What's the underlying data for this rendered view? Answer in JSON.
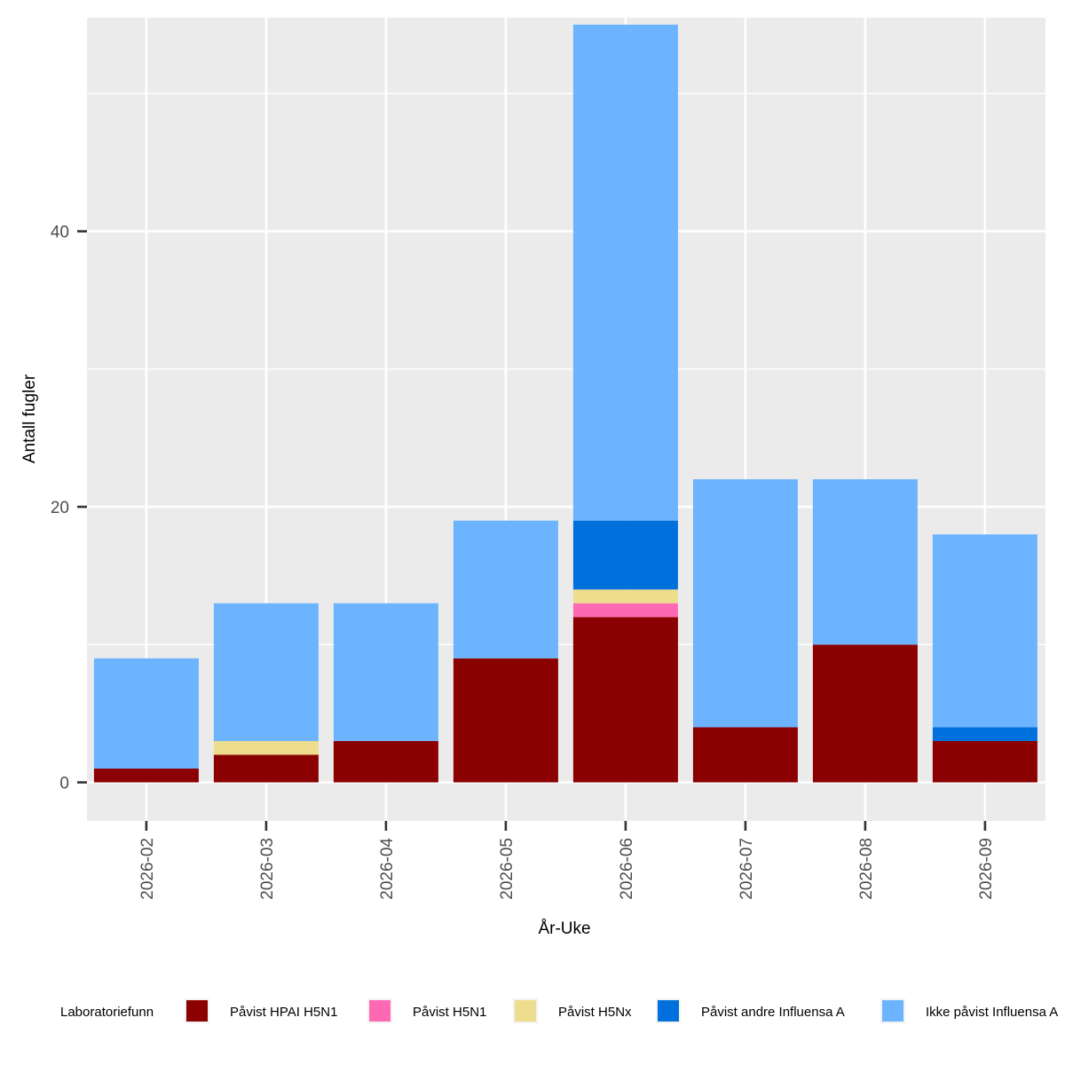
{
  "chart_data": {
    "type": "bar",
    "stacked": true,
    "title": "",
    "xlabel": "År-Uke",
    "ylabel": "Antall fugler",
    "ylim": [
      -2.8,
      55.5
    ],
    "yticks": [
      0,
      20,
      40
    ],
    "grid": true,
    "legend_position": "bottom",
    "legend_title": "Laboratoriefunn",
    "categories": [
      "2026-02",
      "2026-03",
      "2026-04",
      "2026-05",
      "2026-06",
      "2026-07",
      "2026-08",
      "2026-09"
    ],
    "series": [
      {
        "name": "Påvist HPAI H5N1",
        "color": "#8B0000",
        "values": [
          1,
          2,
          3,
          9,
          12,
          4,
          10,
          3
        ]
      },
      {
        "name": "Påvist H5N1",
        "color": "#FF69B4",
        "values": [
          0,
          0,
          0,
          0,
          1,
          0,
          0,
          0
        ]
      },
      {
        "name": "Påvist H5Nx",
        "color": "#EEDD8D",
        "values": [
          0,
          1,
          0,
          0,
          1,
          0,
          0,
          0
        ]
      },
      {
        "name": "Påvist andre Influensa A",
        "color": "#0070DC",
        "values": [
          0,
          0,
          0,
          0,
          5,
          0,
          0,
          1
        ]
      },
      {
        "name": "Ikke påvist Influensa A",
        "color": "#6CB4FF",
        "values": [
          8,
          10,
          10,
          10,
          36,
          18,
          12,
          14
        ]
      }
    ]
  }
}
